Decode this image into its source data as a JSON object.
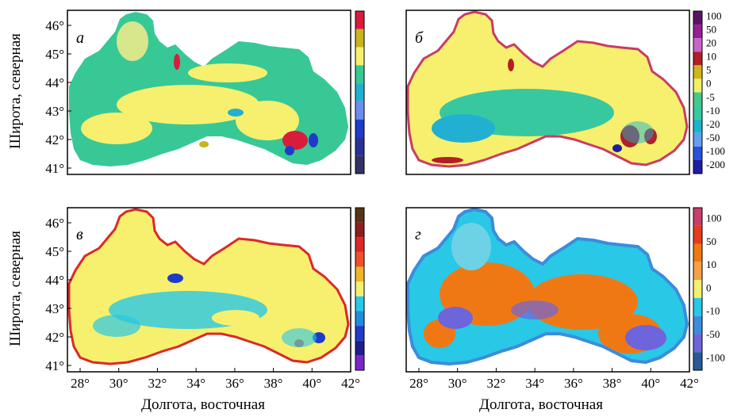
{
  "axes": {
    "ylabel": "Широта, северная",
    "xlabel": "Долгота, восточная",
    "x_ticks": [
      "28°",
      "30°",
      "32°",
      "34°",
      "36°",
      "38°",
      "40°",
      "42°"
    ],
    "y_ticks": [
      "46°",
      "45°",
      "44°",
      "43°",
      "42°",
      "41°"
    ]
  },
  "panels": [
    {
      "id": "a",
      "letter": "а",
      "colorbar": {
        "colors": [
          "#d81c3c",
          "#c8b41e",
          "#f6f06e",
          "#38c896",
          "#22b0d2",
          "#6e8cf0",
          "#1e3cc8",
          "#283296",
          "#323264"
        ],
        "labels": []
      }
    },
    {
      "id": "b",
      "letter": "б",
      "colorbar": {
        "colors": [
          "#5a1464",
          "#961e96",
          "#c864c8",
          "#b41e28",
          "#d2b41e",
          "#f0f064",
          "#46c88c",
          "#38c8a0",
          "#1eb4c8",
          "#64a0f0",
          "#2850dc",
          "#1e1ea0"
        ],
        "labels": [
          "100",
          "50",
          "20",
          "10",
          "5",
          "0",
          "-5",
          "-10",
          "-20",
          "-50",
          "-100",
          "-200"
        ]
      }
    },
    {
      "id": "c",
      "letter": "в",
      "colorbar": {
        "colors": [
          "#5a3214",
          "#8c1e1e",
          "#dc2828",
          "#f05028",
          "#f0b428",
          "#f6f06e",
          "#28c8e6",
          "#1e8cdc",
          "#1e3cc8",
          "#1e1e8c",
          "#7828c8"
        ],
        "labels": []
      }
    },
    {
      "id": "d",
      "letter": "г",
      "colorbar": {
        "colors": [
          "#c83c6e",
          "#e63c1e",
          "#f07814",
          "#f6a048",
          "#f6f06e",
          "#28c8e6",
          "#3c8cdc",
          "#6e64dc",
          "#285a96"
        ],
        "labels": [
          "100",
          "50",
          "10",
          "0",
          "-10",
          "-50",
          "-100"
        ]
      }
    }
  ]
}
